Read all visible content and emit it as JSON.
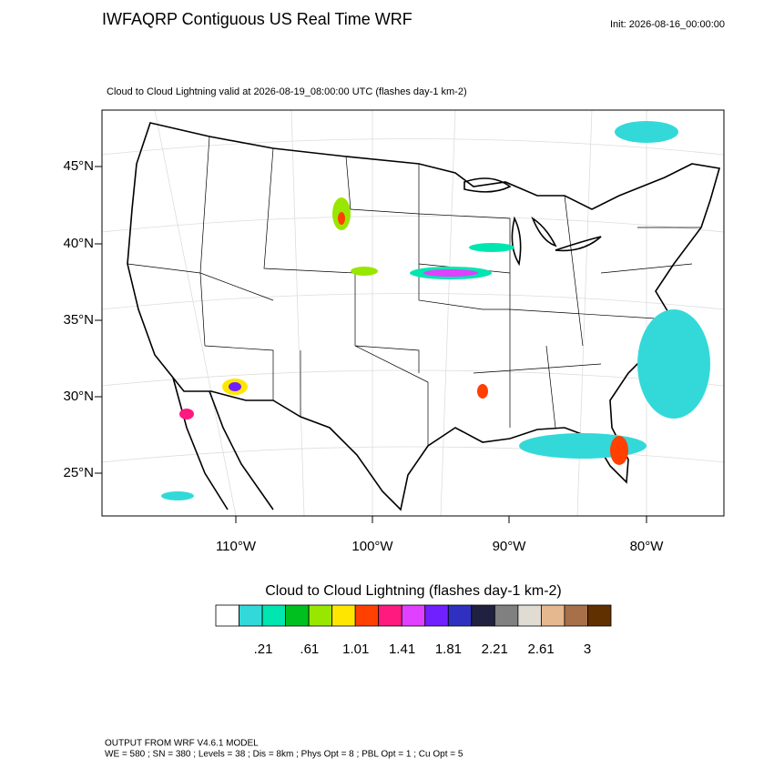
{
  "header": {
    "title": "IWFAQRP Contiguous US Real Time WRF",
    "init": "Init: 2026-08-16_00:00:00"
  },
  "map": {
    "subtitle": "Cloud to Cloud Lightning valid at 2026-08-19_08:00:00 UTC   (flashes day-1 km-2)",
    "lat_labels": [
      "45°N",
      "40°N",
      "35°N",
      "30°N",
      "25°N"
    ],
    "lon_labels": [
      "110°W",
      "100°W",
      "90°W",
      "80°W"
    ]
  },
  "colorbar": {
    "title": "Cloud to Cloud Lightning  (flashes day-1 km-2)",
    "colors": [
      "#ffffff",
      "#33d9d9",
      "#00e6b0",
      "#00c020",
      "#99e600",
      "#ffe600",
      "#ff4000",
      "#ff1a80",
      "#e040ff",
      "#7020ff",
      "#3030c0",
      "#202040",
      "#808080",
      "#e0dcd4",
      "#e6b890",
      "#a87048",
      "#603000"
    ],
    "labels": [
      ".21",
      ".61",
      "1.01",
      "1.41",
      "1.81",
      "2.21",
      "2.61",
      "3"
    ]
  },
  "footer": {
    "line1": "OUTPUT FROM WRF V4.6.1 MODEL",
    "line2": "WE = 580 ; SN = 380 ; Levels = 38 ; Dis = 8km ; Phys Opt = 8 ; PBL Opt = 1 ; Cu Opt = 5"
  }
}
